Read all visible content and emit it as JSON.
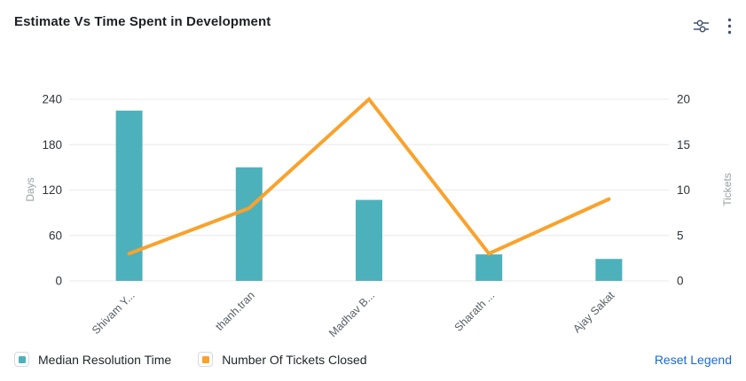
{
  "header": {
    "title": "Estimate Vs Time Spent in Development",
    "settings_icon": "sliders-icon",
    "menu_icon": "kebab-menu-icon"
  },
  "legend": {
    "items": [
      {
        "label": "Median Resolution Time",
        "color": "#4db1bc"
      },
      {
        "label": "Number Of Tickets Closed",
        "color": "#f9a22c"
      }
    ],
    "reset_label": "Reset Legend",
    "reset_color": "#1868db"
  },
  "chart_data": {
    "type": "bar+line combo",
    "title": "Estimate Vs Time Spent in Development",
    "categories": [
      "Shivam Y...",
      "thanh.tran",
      "Madhav B...",
      "Sharath ...",
      "Ajay Sakat"
    ],
    "series": [
      {
        "name": "Median Resolution Time",
        "type": "bar",
        "axis": "left",
        "color": "#4db1bc",
        "values": [
          225,
          150,
          107,
          35,
          29
        ]
      },
      {
        "name": "Number Of Tickets Closed",
        "type": "line",
        "axis": "right",
        "color": "#f9a22c",
        "values": [
          3,
          8,
          20,
          3,
          9
        ]
      }
    ],
    "left_axis": {
      "label": "Days",
      "min": 0,
      "max": 240,
      "ticks": [
        0,
        60,
        120,
        180,
        240
      ]
    },
    "right_axis": {
      "label": "Tickets",
      "min": 0,
      "max": 20,
      "ticks": [
        0,
        5,
        10,
        15,
        20
      ]
    },
    "grid": true,
    "legend_position": "bottom-left",
    "colors": {
      "grid_line": "#ededed",
      "tick_label": "#30343a",
      "axis_name": "#9aa0a6",
      "x_label": "#595f66"
    }
  }
}
